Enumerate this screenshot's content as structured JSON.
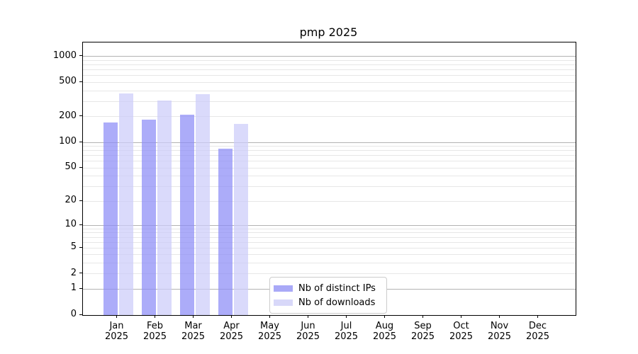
{
  "chart_data": {
    "type": "bar",
    "title": "pmp 2025",
    "categories": [
      "Jan",
      "Feb",
      "Mar",
      "Apr",
      "May",
      "Jun",
      "Jul",
      "Aug",
      "Sep",
      "Oct",
      "Nov",
      "Dec"
    ],
    "year_suffix": "2025",
    "series": [
      {
        "name": "Nb of distinct IPs",
        "bar_color": "#8c8cf6",
        "swatch_color": "#a9a9f7",
        "values": [
          170,
          185,
          210,
          85,
          null,
          null,
          null,
          null,
          null,
          null,
          null,
          null
        ]
      },
      {
        "name": "Nb of downloads",
        "bar_color": "#ccccf9",
        "swatch_color": "#d8d8f9",
        "values": [
          375,
          310,
          365,
          165,
          null,
          null,
          null,
          null,
          null,
          null,
          null,
          null
        ]
      }
    ],
    "yscale": "log10(1+y)",
    "yticks": [
      0,
      1,
      2,
      5,
      10,
      20,
      50,
      100,
      200,
      500,
      1000
    ],
    "ylim": [
      0,
      1455
    ],
    "grid": "on",
    "major_grid_values": [
      1,
      10,
      100,
      1000
    ],
    "legend_location": "lower-center inside plot",
    "colors": {
      "major_grid": "#b3b3b3",
      "minor_grid": "#e7e7e7",
      "spine": "#000000",
      "background": "#ffffff"
    }
  }
}
